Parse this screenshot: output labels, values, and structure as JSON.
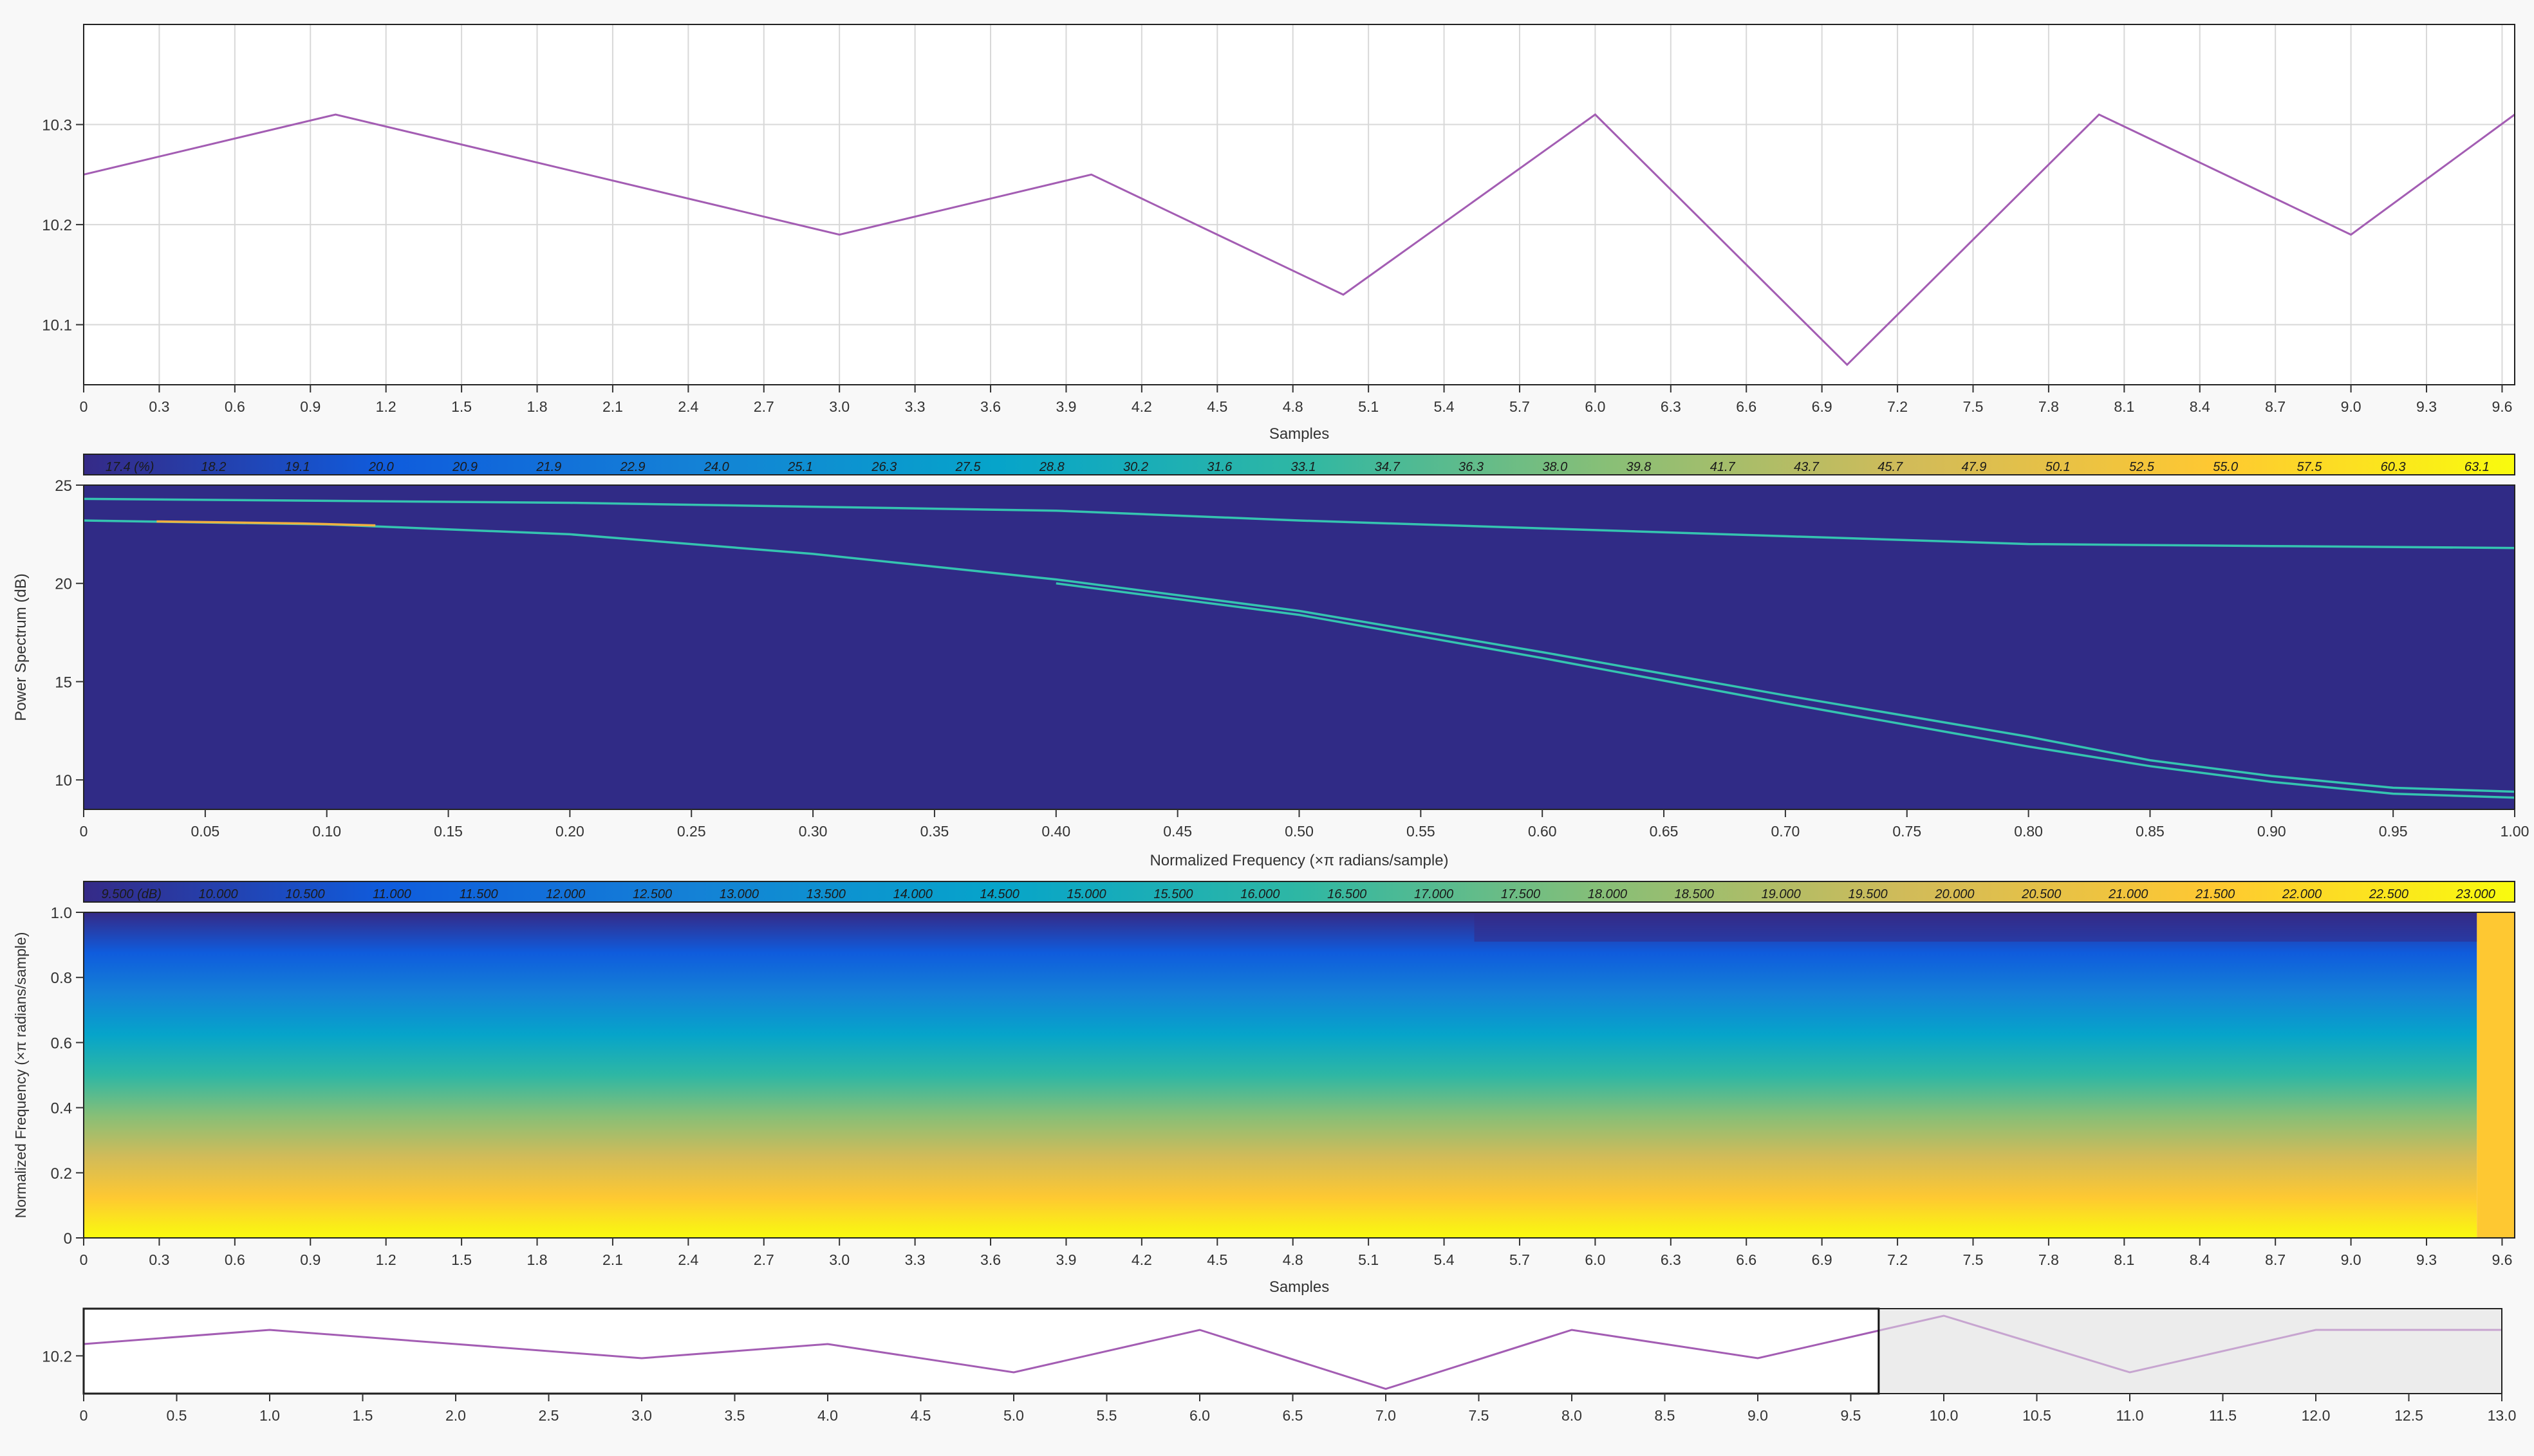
{
  "colors": {
    "line": "#a35db3",
    "grid": "#d8d8d8",
    "axis": "#333333",
    "background": "#f8f8f8",
    "plot_bg": "#ffffff",
    "spectrum_bg": "#302b86",
    "trace": "#35c4b0",
    "parula": [
      "#352a87",
      "#0f5cdd",
      "#1481d6",
      "#06a4ca",
      "#2eb7a4",
      "#87bf77",
      "#d1bb59",
      "#fec832",
      "#f9fb0e"
    ],
    "selection_fill": "#ececec",
    "selected_line": "#c7a5d0"
  },
  "chart_data": [
    {
      "type": "line",
      "name": "top-signal",
      "x": [
        0,
        1,
        2,
        3,
        4,
        5,
        6,
        7,
        8,
        9,
        9.65
      ],
      "y": [
        10.25,
        10.31,
        10.25,
        10.19,
        10.25,
        10.13,
        10.31,
        10.06,
        10.31,
        10.19,
        10.31
      ],
      "xlabel": "Samples",
      "ylabel": "",
      "xlim": [
        0,
        9.65
      ],
      "ylim": [
        10.04,
        10.4
      ],
      "xticks": [
        "0",
        "0.3",
        "0.6",
        "0.9",
        "1.2",
        "1.5",
        "1.8",
        "2.1",
        "2.4",
        "2.7",
        "3.0",
        "3.3",
        "3.6",
        "3.9",
        "4.2",
        "4.5",
        "4.8",
        "5.1",
        "5.4",
        "5.7",
        "6.0",
        "6.3",
        "6.6",
        "6.9",
        "7.2",
        "7.5",
        "7.8",
        "8.1",
        "8.4",
        "8.7",
        "9.0",
        "9.3",
        "9.6"
      ],
      "yticks": [
        "10.1",
        "10.2",
        "10.3"
      ],
      "grid": true
    },
    {
      "type": "heatmap",
      "name": "persistence-spectrum",
      "colorbar_labels": [
        "17.4 (%)",
        "18.2",
        "19.1",
        "20.0",
        "20.9",
        "21.9",
        "22.9",
        "24.0",
        "25.1",
        "26.3",
        "27.5",
        "28.8",
        "30.2",
        "31.6",
        "33.1",
        "34.7",
        "36.3",
        "38.0",
        "39.8",
        "41.7",
        "43.7",
        "45.7",
        "47.9",
        "50.1",
        "52.5",
        "55.0",
        "57.5",
        "60.3",
        "63.1"
      ],
      "xlabel": "Normalized Frequency (×π radians/sample)",
      "ylabel": "Power Spectrum (dB)",
      "xlim": [
        0,
        1
      ],
      "ylim": [
        8.5,
        25
      ],
      "xticks": [
        "0",
        "0.05",
        "0.10",
        "0.15",
        "0.20",
        "0.25",
        "0.30",
        "0.35",
        "0.40",
        "0.45",
        "0.50",
        "0.55",
        "0.60",
        "0.65",
        "0.70",
        "0.75",
        "0.80",
        "0.85",
        "0.90",
        "0.95",
        "1.00"
      ],
      "yticks": [
        "10",
        "15",
        "20",
        "25"
      ],
      "traces": [
        {
          "x": [
            0,
            0.1,
            0.2,
            0.3,
            0.4,
            0.5,
            0.6,
            0.7,
            0.8,
            0.9,
            1.0
          ],
          "y": [
            24.3,
            24.2,
            24.1,
            23.9,
            23.7,
            23.2,
            22.8,
            22.4,
            22.0,
            21.9,
            21.8
          ]
        },
        {
          "x": [
            0,
            0.1,
            0.2,
            0.3,
            0.4,
            0.5,
            0.6,
            0.7,
            0.8,
            0.85,
            0.9,
            0.95,
            1.0
          ],
          "y": [
            23.2,
            23.0,
            22.5,
            21.5,
            20.2,
            18.6,
            16.5,
            14.3,
            12.2,
            11.0,
            10.2,
            9.6,
            9.4
          ]
        },
        {
          "x": [
            0.4,
            0.5,
            0.6,
            0.7,
            0.8,
            0.85,
            0.9,
            0.95,
            1.0
          ],
          "y": [
            20.0,
            18.4,
            16.2,
            13.9,
            11.7,
            10.7,
            9.9,
            9.3,
            9.1
          ]
        }
      ]
    },
    {
      "type": "heatmap",
      "name": "spectrogram",
      "colorbar_labels": [
        "9.500 (dB)",
        "10.000",
        "10.500",
        "11.000",
        "11.500",
        "12.000",
        "12.500",
        "13.000",
        "13.500",
        "14.000",
        "14.500",
        "15.000",
        "15.500",
        "16.000",
        "16.500",
        "17.000",
        "17.500",
        "18.000",
        "18.500",
        "19.000",
        "19.500",
        "20.000",
        "20.500",
        "21.000",
        "21.500",
        "22.000",
        "22.500",
        "23.000"
      ],
      "xlabel": "Samples",
      "ylabel": "Normalized Frequency (×π radians/sample)",
      "xlim": [
        0,
        9.65
      ],
      "ylim": [
        0,
        1
      ],
      "xticks": [
        "0",
        "0.3",
        "0.6",
        "0.9",
        "1.2",
        "1.5",
        "1.8",
        "2.1",
        "2.4",
        "2.7",
        "3.0",
        "3.3",
        "3.6",
        "3.9",
        "4.2",
        "4.5",
        "4.8",
        "5.1",
        "5.4",
        "5.7",
        "6.0",
        "6.3",
        "6.6",
        "6.9",
        "7.2",
        "7.5",
        "7.8",
        "8.1",
        "8.4",
        "8.7",
        "9.0",
        "9.3",
        "9.6"
      ],
      "yticks": [
        "0",
        "0.2",
        "0.4",
        "0.6",
        "0.8",
        "1.0"
      ]
    },
    {
      "type": "line",
      "name": "panner",
      "x": [
        0,
        1,
        2,
        3,
        4,
        5,
        6,
        7,
        8,
        9,
        10,
        11,
        12,
        13
      ],
      "y": [
        10.25,
        10.31,
        10.25,
        10.19,
        10.25,
        10.13,
        10.31,
        10.06,
        10.31,
        10.19,
        10.37,
        10.13,
        10.31,
        10.31
      ],
      "xlabel": "",
      "xlim": [
        0,
        13
      ],
      "ylim": [
        10.04,
        10.4
      ],
      "xticks": [
        "0",
        "0.5",
        "1.0",
        "1.5",
        "2.0",
        "2.5",
        "3.0",
        "3.5",
        "4.0",
        "4.5",
        "5.0",
        "5.5",
        "6.0",
        "6.5",
        "7.0",
        "7.5",
        "8.0",
        "8.5",
        "9.0",
        "9.5",
        "10.0",
        "10.5",
        "11.0",
        "11.5",
        "12.0",
        "12.5",
        "13.0"
      ],
      "yticks": [
        "10.2"
      ],
      "selection": [
        9.65,
        13
      ]
    }
  ]
}
